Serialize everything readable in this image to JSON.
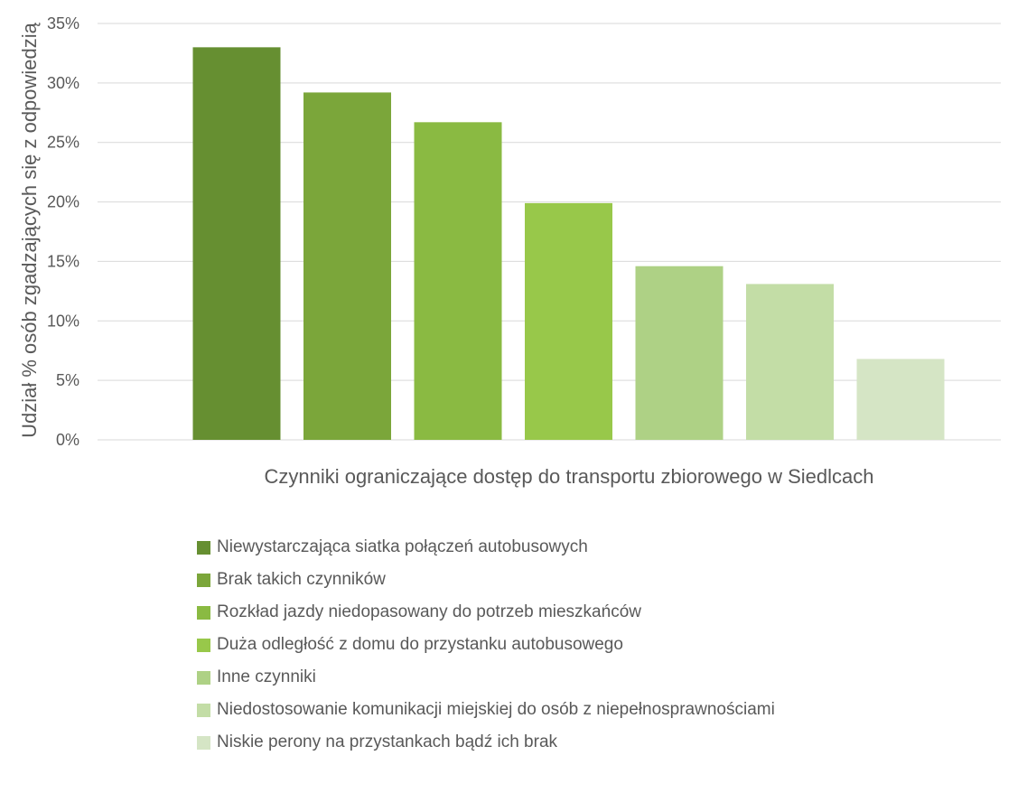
{
  "chart_data": {
    "type": "bar",
    "categories": [
      "Niewystarczająca siatka połączeń autobusowych",
      "Brak takich czynników",
      "Rozkład jazdy niedopasowany do potrzeb mieszkańców",
      "Duża odległość z domu do przystanku autobusowego",
      "Inne czynniki",
      "Niedostosowanie komunikacji miejskiej do osób z niepełnosprawnościami",
      "Niskie perony na przystankach bądź ich brak"
    ],
    "values": [
      33.0,
      29.2,
      26.7,
      19.9,
      14.6,
      13.1,
      6.8
    ],
    "colors": [
      "#668f31",
      "#7ba63a",
      "#8aba42",
      "#98c84a",
      "#aed185",
      "#c3dda6",
      "#d5e5c5"
    ],
    "title": "",
    "xlabel": "Czynniki ograniczające dostęp do transportu zbiorowego w Siedlcach",
    "ylabel": "Udział % osób zgadzających się z odpowiedzią",
    "ylim": [
      0,
      35
    ],
    "yticks": [
      "0%",
      "5%",
      "10%",
      "15%",
      "20%",
      "25%",
      "30%",
      "35%"
    ],
    "grid": true,
    "legend_position": "bottom"
  }
}
